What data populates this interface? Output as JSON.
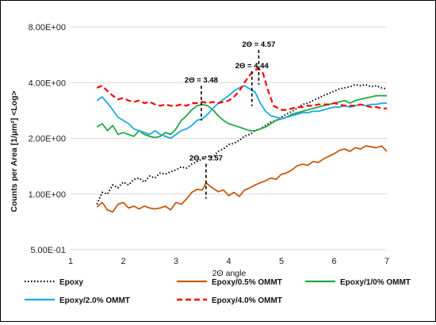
{
  "chart_data": {
    "type": "line",
    "title": "",
    "xlabel": "2Θ angle",
    "ylabel": "Counts per Area [1/µm²] <Log>",
    "xlim": [
      1,
      7
    ],
    "ylim": [
      0.5,
      8.0
    ],
    "y_scale": "log",
    "x_ticks": [
      "1",
      "2",
      "3",
      "4",
      "5",
      "6",
      "7"
    ],
    "y_ticks": [
      "5.00E-01",
      "1.00E+00",
      "2.00E+00",
      "4.00E+00",
      "8.00E+00"
    ],
    "grid": "horizontal",
    "legend_position": "bottom",
    "series": [
      {
        "name": "Epoxy",
        "color": "#000000",
        "dash": "dotted",
        "x": [
          1.5,
          1.6,
          1.7,
          1.8,
          1.9,
          2.0,
          2.1,
          2.2,
          2.3,
          2.4,
          2.5,
          2.6,
          2.7,
          2.8,
          2.9,
          3.0,
          3.1,
          3.2,
          3.3,
          3.4,
          3.5,
          3.6,
          3.7,
          3.8,
          3.9,
          4.0,
          4.1,
          4.2,
          4.3,
          4.4,
          4.5,
          4.6,
          4.7,
          4.8,
          4.9,
          5.0,
          5.1,
          5.2,
          5.3,
          5.4,
          5.5,
          5.6,
          5.7,
          5.8,
          5.9,
          6.0,
          6.1,
          6.2,
          6.3,
          6.4,
          6.5,
          6.6,
          6.7,
          6.8,
          6.9,
          7.0
        ],
        "values": [
          0.88,
          1.02,
          1.0,
          1.12,
          1.08,
          1.16,
          1.12,
          1.2,
          1.22,
          1.16,
          1.25,
          1.22,
          1.3,
          1.28,
          1.32,
          1.35,
          1.4,
          1.38,
          1.45,
          1.5,
          1.55,
          1.6,
          1.58,
          1.7,
          1.75,
          1.85,
          1.88,
          1.95,
          2.05,
          2.1,
          2.2,
          2.25,
          2.35,
          2.45,
          2.5,
          2.6,
          2.7,
          2.8,
          2.9,
          3.05,
          3.1,
          3.2,
          3.3,
          3.4,
          3.5,
          3.6,
          3.7,
          3.75,
          3.8,
          3.9,
          3.85,
          3.9,
          3.8,
          3.85,
          3.75,
          3.7
        ]
      },
      {
        "name": "Epoxy/0.5% OMMT",
        "color": "#c55a11",
        "dash": "solid",
        "x": [
          1.5,
          1.6,
          1.7,
          1.8,
          1.9,
          2.0,
          2.1,
          2.2,
          2.3,
          2.4,
          2.5,
          2.6,
          2.7,
          2.8,
          2.9,
          3.0,
          3.1,
          3.2,
          3.3,
          3.4,
          3.5,
          3.57,
          3.65,
          3.8,
          3.9,
          4.0,
          4.1,
          4.2,
          4.3,
          4.4,
          4.5,
          4.6,
          4.7,
          4.8,
          4.9,
          5.0,
          5.1,
          5.2,
          5.3,
          5.4,
          5.5,
          5.6,
          5.7,
          5.8,
          5.9,
          6.0,
          6.1,
          6.2,
          6.3,
          6.4,
          6.5,
          6.6,
          6.7,
          6.8,
          6.9,
          7.0
        ],
        "values": [
          0.85,
          0.9,
          0.82,
          0.8,
          0.88,
          0.9,
          0.84,
          0.86,
          0.83,
          0.86,
          0.84,
          0.83,
          0.84,
          0.86,
          0.82,
          0.9,
          0.88,
          0.94,
          1.02,
          1.06,
          1.05,
          1.15,
          1.1,
          1.03,
          1.05,
          0.98,
          1.02,
          0.97,
          1.05,
          1.08,
          1.12,
          1.15,
          1.18,
          1.22,
          1.2,
          1.28,
          1.3,
          1.35,
          1.42,
          1.45,
          1.43,
          1.5,
          1.48,
          1.55,
          1.6,
          1.65,
          1.72,
          1.75,
          1.7,
          1.78,
          1.75,
          1.82,
          1.8,
          1.78,
          1.82,
          1.7
        ]
      },
      {
        "name": "Epoxy/1/0% OMMT",
        "color": "#22a846",
        "dash": "solid",
        "x": [
          1.5,
          1.6,
          1.7,
          1.8,
          1.9,
          2.0,
          2.1,
          2.2,
          2.3,
          2.4,
          2.5,
          2.6,
          2.7,
          2.8,
          2.9,
          3.0,
          3.1,
          3.2,
          3.3,
          3.4,
          3.5,
          3.6,
          3.7,
          3.8,
          3.9,
          4.0,
          4.1,
          4.2,
          4.3,
          4.4,
          4.5,
          4.6,
          4.7,
          4.8,
          4.9,
          5.0,
          5.1,
          5.2,
          5.3,
          5.4,
          5.5,
          5.6,
          5.7,
          5.8,
          5.9,
          6.0,
          6.1,
          6.2,
          6.3,
          6.4,
          6.5,
          6.6,
          6.7,
          6.8,
          6.9,
          7.0
        ],
        "values": [
          2.3,
          2.4,
          2.2,
          2.35,
          2.1,
          2.15,
          2.1,
          2.05,
          2.2,
          2.1,
          2.05,
          2.02,
          2.05,
          2.15,
          2.1,
          2.25,
          2.5,
          2.65,
          2.85,
          3.0,
          3.05,
          3.0,
          2.85,
          2.65,
          2.5,
          2.4,
          2.35,
          2.3,
          2.25,
          2.2,
          2.2,
          2.25,
          2.3,
          2.4,
          2.5,
          2.55,
          2.6,
          2.7,
          2.75,
          2.8,
          2.85,
          2.9,
          2.95,
          3.0,
          3.05,
          3.1,
          3.15,
          3.2,
          3.1,
          3.2,
          3.25,
          3.3,
          3.35,
          3.4,
          3.4,
          3.4
        ]
      },
      {
        "name": "Epoxy/2.0% OMMT",
        "color": "#1ea7e1",
        "dash": "solid",
        "x": [
          1.5,
          1.6,
          1.7,
          1.8,
          1.9,
          2.0,
          2.1,
          2.2,
          2.3,
          2.4,
          2.5,
          2.6,
          2.7,
          2.8,
          2.9,
          3.0,
          3.1,
          3.2,
          3.3,
          3.4,
          3.5,
          3.6,
          3.7,
          3.8,
          3.9,
          4.0,
          4.1,
          4.2,
          4.3,
          4.4,
          4.5,
          4.6,
          4.7,
          4.8,
          4.9,
          5.0,
          5.1,
          5.2,
          5.3,
          5.4,
          5.5,
          5.6,
          5.7,
          5.8,
          5.9,
          6.0,
          6.1,
          6.2,
          6.3,
          6.4,
          6.5,
          6.6,
          6.7,
          6.8,
          6.9,
          7.0
        ],
        "values": [
          3.2,
          3.35,
          3.1,
          2.85,
          2.6,
          2.5,
          2.4,
          2.25,
          2.2,
          2.15,
          2.1,
          2.2,
          2.1,
          2.05,
          2.0,
          2.1,
          2.2,
          2.25,
          2.35,
          2.5,
          2.55,
          2.7,
          2.9,
          3.1,
          3.25,
          3.4,
          3.6,
          3.75,
          3.85,
          3.7,
          3.55,
          3.1,
          2.8,
          2.65,
          2.6,
          2.55,
          2.6,
          2.65,
          2.7,
          2.75,
          2.75,
          2.8,
          2.8,
          2.85,
          2.9,
          2.95,
          2.95,
          3.0,
          2.95,
          3.0,
          3.05,
          3.0,
          3.05,
          3.05,
          3.1,
          3.1
        ]
      },
      {
        "name": "Epoxy/4.0% OMMT",
        "color": "#ff0000",
        "dash": "dashed",
        "x": [
          1.5,
          1.6,
          1.7,
          1.8,
          1.9,
          2.0,
          2.1,
          2.2,
          2.3,
          2.4,
          2.5,
          2.6,
          2.7,
          2.8,
          2.9,
          3.0,
          3.1,
          3.2,
          3.3,
          3.4,
          3.5,
          3.6,
          3.7,
          3.8,
          3.9,
          4.0,
          4.1,
          4.2,
          4.3,
          4.4,
          4.5,
          4.57,
          4.65,
          4.75,
          4.85,
          5.0,
          5.1,
          5.2,
          5.3,
          5.4,
          5.5,
          5.6,
          5.7,
          5.8,
          5.9,
          6.0,
          6.1,
          6.2,
          6.3,
          6.4,
          6.5,
          6.6,
          6.7,
          6.8,
          6.9,
          7.0
        ],
        "values": [
          3.75,
          3.85,
          3.6,
          3.4,
          3.25,
          3.3,
          3.2,
          3.15,
          3.2,
          3.1,
          3.15,
          3.05,
          3.0,
          3.05,
          3.0,
          3.0,
          3.05,
          3.0,
          3.1,
          3.1,
          3.15,
          3.1,
          3.15,
          3.1,
          3.15,
          3.2,
          3.35,
          3.6,
          4.0,
          4.4,
          4.7,
          4.75,
          4.5,
          3.6,
          3.0,
          2.85,
          2.85,
          2.9,
          2.95,
          2.95,
          3.0,
          3.0,
          3.05,
          3.05,
          3.05,
          3.1,
          3.05,
          3.0,
          3.0,
          3.0,
          3.05,
          3.0,
          2.95,
          2.95,
          2.9,
          2.9
        ]
      }
    ],
    "annotations": [
      {
        "text": "2Θ = 3.48",
        "x": 3.48,
        "series_index": 2
      },
      {
        "text": "2Θ = 3.57",
        "x": 3.57,
        "series_index": 1
      },
      {
        "text": "2Θ = 4.44",
        "x": 4.44,
        "series_index": 3
      },
      {
        "text": "2Θ = 4.57",
        "x": 4.57,
        "series_index": 4
      }
    ]
  }
}
